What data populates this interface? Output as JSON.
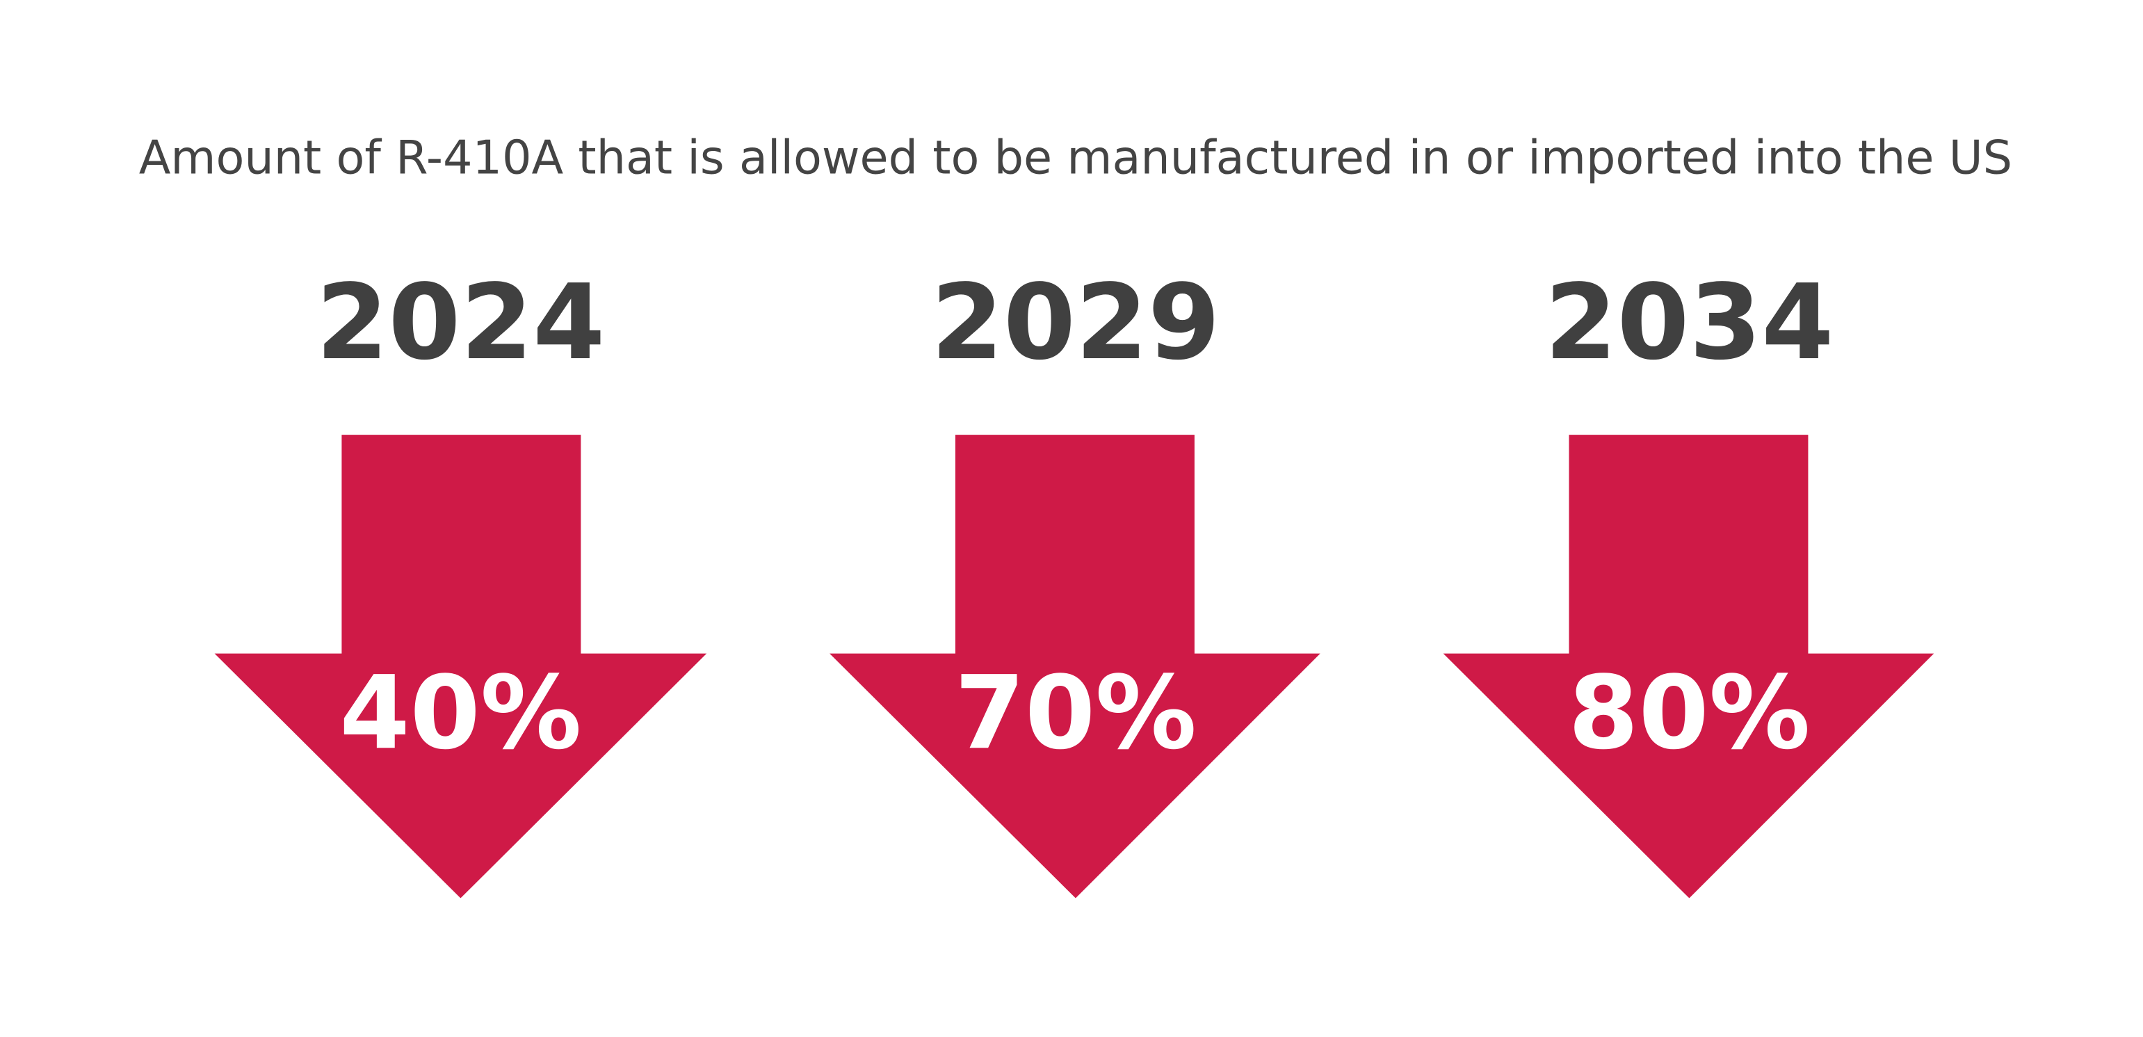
{
  "title": "Amount of R-410A that is allowed to be manufactured in or imported into the US",
  "items": [
    {
      "year": "2024",
      "reduction": "40%"
    },
    {
      "year": "2029",
      "reduction": "70%"
    },
    {
      "year": "2034",
      "reduction": "80%"
    }
  ]
}
